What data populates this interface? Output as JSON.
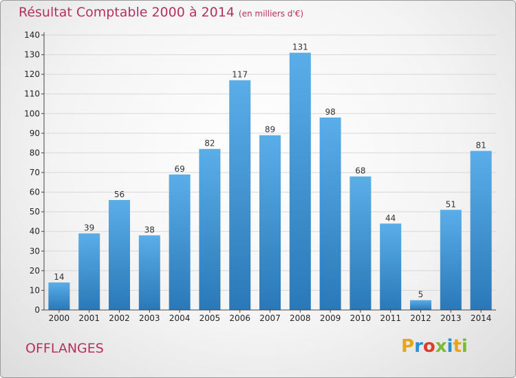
{
  "title": "Résultat Comptable 2000 à 2014",
  "unit_note": "(en milliers d'€)",
  "commune": "OFFLANGES",
  "logo": {
    "letters": [
      "P",
      "r",
      "o",
      "x",
      "i",
      "t",
      "i"
    ],
    "colors": [
      "#e8a41a",
      "#2a8fd1",
      "#e23a2a",
      "#7cb934",
      "#2a8fd1",
      "#e8a41a",
      "#7cb934"
    ]
  },
  "chart_data": {
    "type": "bar",
    "categories": [
      "2000",
      "2001",
      "2002",
      "2003",
      "2004",
      "2005",
      "2006",
      "2007",
      "2008",
      "2009",
      "2010",
      "2011",
      "2012",
      "2013",
      "2014"
    ],
    "values": [
      14,
      39,
      56,
      38,
      69,
      82,
      117,
      89,
      131,
      98,
      68,
      44,
      5,
      51,
      81
    ],
    "ylim": [
      0,
      140
    ],
    "yticks": [
      0,
      10,
      20,
      30,
      40,
      50,
      60,
      70,
      80,
      90,
      100,
      110,
      120,
      130,
      140
    ],
    "grid": "horizontal",
    "bar_color": "#3c94da"
  }
}
